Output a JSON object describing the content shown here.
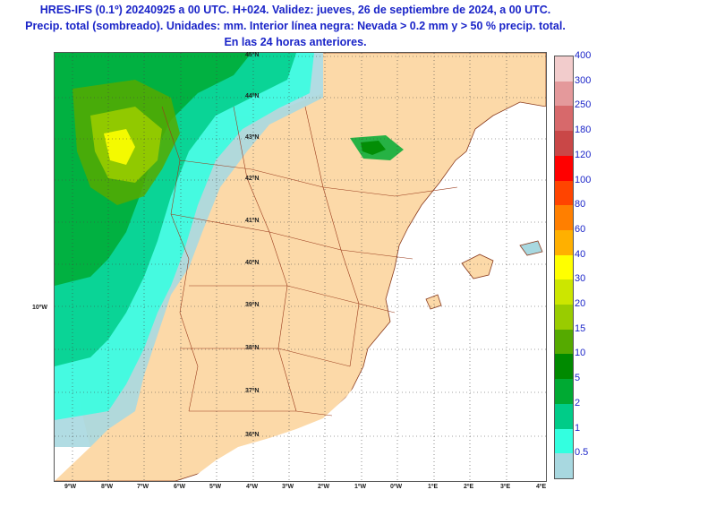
{
  "header": {
    "line1": "HRES-IFS (0.1º) 20240925 a 00 UTC. H+024. Validez: jueves, 26 de septiembre de 2024, a 00 UTC.",
    "line2": "Precip. total (sombreado). Unidades: mm. Interior línea negra: Nevada > 0.2 mm y > 50 % precip. total.",
    "line3": "En las 24 horas anteriores."
  },
  "map": {
    "lat_labels": [
      "45ºN",
      "44ºN",
      "43ºN",
      "42ºN",
      "41ºN",
      "40ºN",
      "39ºN",
      "38ºN",
      "37ºN",
      "36ºN"
    ],
    "lon_labels": [
      "9ºW",
      "8ºW",
      "7ºW",
      "6ºW",
      "5ºW",
      "4ºW",
      "3ºW",
      "2ºW",
      "1ºW",
      "0ºW",
      "1ºE",
      "2ºE",
      "3ºE",
      "4ºE"
    ],
    "side_label": "10ºW",
    "colors": {
      "land": "#fcd9a8",
      "sea": "#ffffff",
      "border": "#9a3b1c",
      "coast": "#8a3a1c"
    }
  },
  "legend": {
    "levels": [
      {
        "label": "400",
        "color": "#f2cccc"
      },
      {
        "label": "300",
        "color": "#e4999b"
      },
      {
        "label": "250",
        "color": "#d7696b"
      },
      {
        "label": "180",
        "color": "#c94747"
      },
      {
        "label": "120",
        "color": "#ff0000"
      },
      {
        "label": "100",
        "color": "#ff4400"
      },
      {
        "label": "80",
        "color": "#ff7f00"
      },
      {
        "label": "60",
        "color": "#ffb000"
      },
      {
        "label": "40",
        "color": "#ffff00"
      },
      {
        "label": "30",
        "color": "#cce600"
      },
      {
        "label": "20",
        "color": "#99cc00"
      },
      {
        "label": "15",
        "color": "#55aa00"
      },
      {
        "label": "10",
        "color": "#008a00"
      },
      {
        "label": "5",
        "color": "#00aa33"
      },
      {
        "label": "2",
        "color": "#00cc88"
      },
      {
        "label": "1",
        "color": "#33ffe0"
      },
      {
        "label": "0.5",
        "color": "#a8d8e0"
      }
    ]
  }
}
